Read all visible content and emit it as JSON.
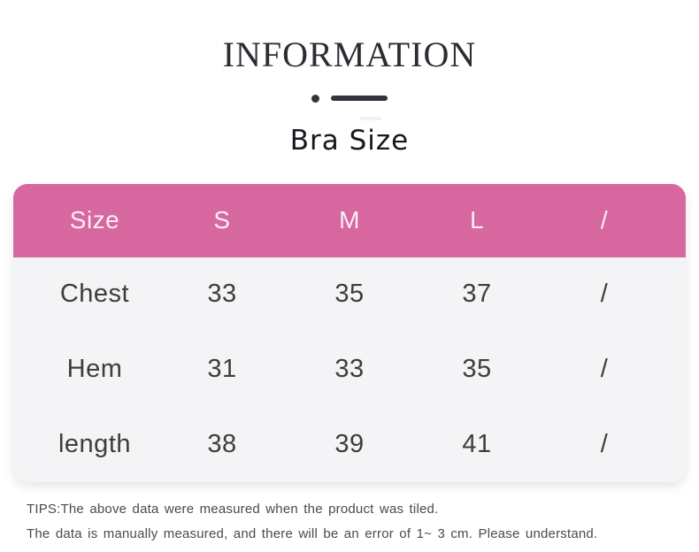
{
  "header": {
    "title": "INFORMATION",
    "subtitle": "Bra Size"
  },
  "decor": {
    "dot_icon": "dot-icon",
    "dash_icon": "dash-line-icon",
    "color": "#33333c"
  },
  "chart_data": {
    "type": "table",
    "title": "Bra Size",
    "columns": [
      "Size",
      "S",
      "M",
      "L",
      "/"
    ],
    "rows": [
      [
        "Chest",
        "33",
        "35",
        "37",
        "/"
      ],
      [
        "Hem",
        "31",
        "33",
        "35",
        "/"
      ],
      [
        "length",
        "38",
        "39",
        "41",
        "/"
      ]
    ],
    "unit": "cm",
    "header_bg": "#d6689f",
    "header_text_color": "#ffffff",
    "body_bg": "#f4f3f5",
    "body_text_color": "#3d3d3d",
    "corner_radius_px": 16
  },
  "tips": {
    "line1": "TIPS:The above data were measured when the product was tiled.",
    "line2": "The data is manually measured, and there will be an error of 1~ 3 cm. Please understand."
  }
}
